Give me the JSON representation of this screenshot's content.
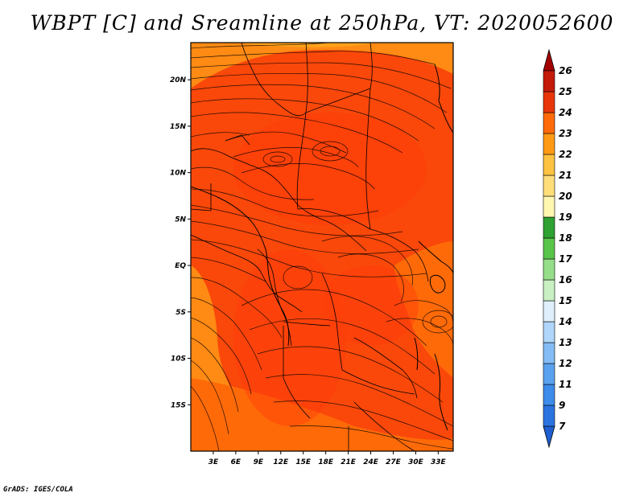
{
  "title": "WBPT [C] and Sreamline at 250hPa, VT: 2020052600",
  "credit": "GrADS: IGES/COLA",
  "map": {
    "lon_range": [
      0,
      35
    ],
    "lat_range": [
      -20,
      24
    ],
    "lat_ticks": [
      "20N",
      "15N",
      "10N",
      "5N",
      "EQ",
      "5S",
      "10S",
      "15S"
    ],
    "lat_values": [
      20,
      15,
      10,
      5,
      0,
      -5,
      -10,
      -15
    ],
    "lon_ticks": [
      "3E",
      "6E",
      "9E",
      "12E",
      "15E",
      "18E",
      "21E",
      "24E",
      "27E",
      "30E",
      "33E"
    ],
    "lon_values": [
      3,
      6,
      9,
      12,
      15,
      18,
      21,
      24,
      27,
      30,
      33
    ]
  },
  "colorbar": {
    "levels": [
      "7",
      "9",
      "11",
      "12",
      "13",
      "14",
      "15",
      "16",
      "17",
      "18",
      "19",
      "20",
      "21",
      "22",
      "23",
      "24",
      "25",
      "26"
    ],
    "colors": [
      "#1f5fd0",
      "#2b74e0",
      "#3d8bea",
      "#5aa2f0",
      "#84bcf6",
      "#b0d6fa",
      "#dff0fc",
      "#c9f0c2",
      "#96de8a",
      "#58c54a",
      "#2ea132",
      "#fff6b0",
      "#ffde7a",
      "#ffc342",
      "#ff9a14",
      "#ff6a08",
      "#e8360a",
      "#c41a0a",
      "#a30000"
    ]
  },
  "field_colors": {
    "base": "#f9480a",
    "warm": "#ff6a08",
    "hot": "#ff3c0a",
    "orange": "#ff8a14",
    "lightorange": "#ffa21a"
  },
  "line_color": "#000000"
}
